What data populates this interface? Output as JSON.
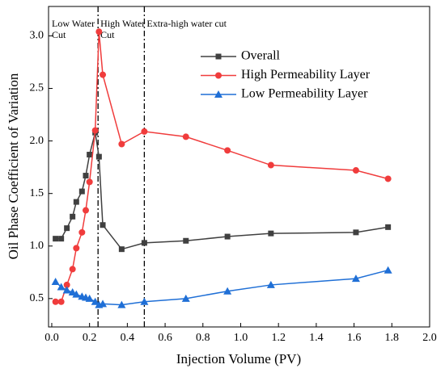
{
  "chart_data": {
    "type": "line",
    "x_label": "Injection Volume (PV)",
    "y_label": "Oil Phase Coefficient of Variation",
    "x": [
      0.02,
      0.05,
      0.08,
      0.11,
      0.13,
      0.16,
      0.18,
      0.2,
      0.23,
      0.25,
      0.27,
      0.37,
      0.49,
      0.71,
      0.93,
      1.16,
      1.61,
      1.78
    ],
    "series": [
      {
        "name": "Overall",
        "color": "#404040",
        "marker": "square",
        "values": [
          1.07,
          1.07,
          1.17,
          1.28,
          1.42,
          1.52,
          1.67,
          1.87,
          2.08,
          1.85,
          1.2,
          0.97,
          1.03,
          1.05,
          1.09,
          1.12,
          1.13,
          1.18
        ]
      },
      {
        "name": "High Permeability Layer",
        "color": "#f03c3c",
        "marker": "circle",
        "values": [
          0.47,
          0.47,
          0.63,
          0.78,
          0.98,
          1.13,
          1.34,
          1.61,
          2.1,
          3.04,
          2.63,
          1.97,
          2.09,
          2.04,
          1.91,
          1.77,
          1.72,
          1.64
        ]
      },
      {
        "name": "Low Permeability Layer",
        "color": "#1f6fd6",
        "marker": "triangle",
        "values": [
          0.66,
          0.61,
          0.58,
          0.56,
          0.54,
          0.52,
          0.51,
          0.5,
          0.47,
          0.44,
          0.45,
          0.44,
          0.47,
          0.5,
          0.57,
          0.63,
          0.69,
          0.77
        ]
      }
    ],
    "vlines": [
      0.245,
      0.49
    ],
    "regions": [
      {
        "label": [
          "Low Water",
          "Cut"
        ]
      },
      {
        "label": [
          "High Water",
          "Cut"
        ]
      },
      {
        "label": [
          "Extra-high water cut"
        ]
      }
    ],
    "xlim": [
      -0.017,
      2.0
    ],
    "xticks": [
      {
        "value": 0,
        "label": "0.0"
      },
      0.2,
      0.4,
      0.6,
      0.8,
      {
        "value": 1,
        "label": "1.0"
      },
      1.2,
      1.4,
      1.6,
      1.8,
      {
        "value": 2,
        "label": "2.0"
      }
    ],
    "ylim": [
      0.23,
      3.28
    ],
    "yticks": [
      0.5,
      {
        "value": 1,
        "label": "1.0"
      },
      1.5,
      {
        "value": 2,
        "label": "2.0"
      },
      2.5,
      {
        "value": 3,
        "label": "3.0"
      }
    ],
    "legend": "upper right"
  }
}
